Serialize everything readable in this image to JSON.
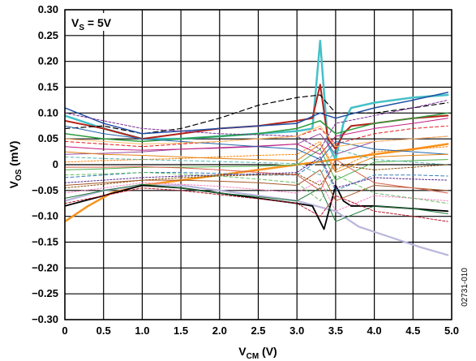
{
  "chart_data": {
    "type": "line",
    "title": "",
    "xlabel": {
      "main": "V",
      "sub": "CM",
      "rest": " (V)"
    },
    "ylabel": {
      "main": "V",
      "sub": "OS",
      "rest": " (mV)"
    },
    "xlim": [
      0,
      5
    ],
    "ylim": [
      -0.3,
      0.3
    ],
    "x_ticks": [
      0,
      0.5,
      1.0,
      1.5,
      2.0,
      2.5,
      3.0,
      3.5,
      4.0,
      4.5,
      5.0
    ],
    "x_tick_labels": [
      "0",
      "0.5",
      "1.0",
      "1.5",
      "2.0",
      "2.5",
      "3.0",
      "3.5",
      "4.0",
      "4.5",
      "5.0"
    ],
    "y_ticks": [
      0.3,
      0.25,
      0.2,
      0.15,
      0.1,
      0.05,
      0,
      -0.05,
      -0.1,
      -0.15,
      -0.2,
      -0.25,
      -0.3
    ],
    "y_tick_labels": [
      "0.30",
      "0.25",
      "0.20",
      "0.15",
      "0.10",
      "0.05",
      "0",
      "−0.05",
      "−0.10",
      "−0.15",
      "−0.20",
      "−0.25",
      "−0.30"
    ],
    "grid": true,
    "annotation": {
      "main": "V",
      "sub": "S",
      "rest": " = 5V"
    },
    "side_id": "02731-010",
    "series": [
      {
        "x": [
          0,
          0.5,
          1.0,
          1.5,
          2.0,
          2.5,
          3.0,
          3.2,
          3.3,
          3.4,
          3.5,
          3.6,
          3.7,
          4.0,
          4.5,
          4.95
        ],
        "y": [
          0.095,
          0.07,
          0.05,
          0.05,
          0.055,
          0.06,
          0.065,
          0.07,
          0.24,
          0.04,
          0.01,
          0.08,
          0.11,
          0.12,
          0.13,
          0.135
        ],
        "color": "#45c0c8",
        "width": 2.5,
        "dash": ""
      },
      {
        "x": [
          0,
          0.5,
          1.0,
          1.5,
          2.0,
          2.5,
          3.0,
          3.2,
          3.3,
          3.4,
          3.5,
          3.6,
          3.7,
          4.0,
          4.5,
          4.95
        ],
        "y": [
          0.085,
          0.07,
          0.05,
          0.06,
          0.07,
          0.075,
          0.085,
          0.09,
          0.155,
          0.05,
          0.03,
          0.06,
          0.075,
          0.08,
          0.09,
          0.095
        ],
        "color": "#b32218",
        "width": 2.0,
        "dash": ""
      },
      {
        "x": [
          0,
          0.5,
          1.0,
          1.5,
          2.0,
          2.5,
          3.0,
          3.3,
          3.5,
          4.0,
          4.5,
          4.95
        ],
        "y": [
          0.07,
          0.075,
          0.06,
          0.07,
          0.09,
          0.115,
          0.13,
          0.135,
          0.1,
          0.1,
          0.11,
          0.12
        ],
        "color": "#000000",
        "width": 1.2,
        "dash": "6,4"
      },
      {
        "x": [
          0,
          0.5,
          1.0,
          1.5,
          2.0,
          2.5,
          3.0,
          3.2,
          3.35,
          3.5,
          3.6,
          3.7,
          4.0,
          4.5,
          4.95
        ],
        "y": [
          0.03,
          0.025,
          0.02,
          0.015,
          0.01,
          0.005,
          0.0,
          -0.005,
          0.04,
          -0.02,
          0.015,
          0.02,
          0.02,
          0.025,
          0.03
        ],
        "color": "#ffffff",
        "width": 2.5,
        "dash": ""
      },
      {
        "x": [
          0,
          0.3,
          0.6,
          1.0,
          1.5,
          2.0,
          2.5,
          3.0,
          3.5,
          4.0,
          4.5,
          4.95
        ],
        "y": [
          -0.11,
          -0.08,
          -0.055,
          -0.04,
          -0.03,
          -0.02,
          -0.01,
          0.0,
          0.01,
          0.02,
          0.03,
          0.04
        ],
        "color": "#f7941d",
        "width": 2.5,
        "dash": ""
      },
      {
        "x": [
          0,
          0.5,
          1.0,
          1.5,
          2.0,
          2.5,
          3.0,
          3.5,
          3.8,
          4.2,
          4.6,
          4.95
        ],
        "y": [
          -0.07,
          -0.05,
          -0.04,
          -0.04,
          -0.05,
          -0.06,
          -0.07,
          -0.09,
          -0.12,
          -0.14,
          -0.16,
          -0.175
        ],
        "color": "#b9b6dc",
        "width": 2.2,
        "dash": ""
      },
      {
        "x": [
          0,
          0.5,
          1.0,
          1.5,
          2.0,
          2.5,
          3.0,
          3.2,
          3.35,
          3.5,
          3.6,
          3.7,
          4.0,
          4.5,
          4.95
        ],
        "y": [
          -0.08,
          -0.06,
          -0.04,
          -0.045,
          -0.055,
          -0.065,
          -0.075,
          -0.08,
          -0.125,
          -0.04,
          -0.07,
          -0.08,
          -0.08,
          -0.085,
          -0.09
        ],
        "color": "#000000",
        "width": 1.8,
        "dash": ""
      },
      {
        "x": [
          0,
          0.5,
          1.0,
          1.5,
          2.0,
          2.5,
          3.0,
          3.3,
          3.5,
          4.0,
          4.5,
          4.95
        ],
        "y": [
          0.11,
          0.08,
          0.06,
          0.065,
          0.07,
          0.075,
          0.08,
          0.1,
          0.09,
          0.11,
          0.125,
          0.14
        ],
        "color": "#1f4fa3",
        "width": 1.5,
        "dash": ""
      },
      {
        "x": [
          0,
          0.5,
          1.0,
          1.5,
          2.0,
          2.5,
          3.0,
          3.3,
          3.5,
          4.0,
          4.5,
          4.95
        ],
        "y": [
          0.06,
          0.05,
          0.045,
          0.05,
          0.055,
          0.06,
          0.07,
          0.085,
          0.06,
          0.08,
          0.09,
          0.1
        ],
        "color": "#2b9b3c",
        "width": 1.5,
        "dash": ""
      },
      {
        "x": [
          0,
          0.5,
          1.0,
          1.5,
          2.0,
          2.5,
          3.0,
          3.3,
          3.5,
          4.0,
          4.5,
          4.95
        ],
        "y": [
          0.045,
          0.04,
          0.035,
          0.04,
          0.045,
          0.05,
          0.055,
          0.07,
          0.04,
          0.06,
          0.07,
          0.075
        ],
        "color": "#e41a1c",
        "width": 1.0,
        "dash": "4,3"
      },
      {
        "x": [
          0,
          0.5,
          1.0,
          1.5,
          2.0,
          2.5,
          3.0,
          3.3,
          3.5,
          4.0,
          4.5,
          4.95
        ],
        "y": [
          0.02,
          0.022,
          0.025,
          0.03,
          0.032,
          0.035,
          0.04,
          0.06,
          0.02,
          0.045,
          0.05,
          0.055
        ],
        "color": "#984ea3",
        "width": 1.0,
        "dash": ""
      },
      {
        "x": [
          0,
          0.5,
          1.0,
          1.5,
          2.0,
          2.5,
          3.0,
          3.3,
          3.5,
          4.0,
          4.5,
          4.95
        ],
        "y": [
          0.005,
          0.008,
          0.01,
          0.012,
          0.015,
          0.018,
          0.02,
          0.045,
          -0.01,
          0.025,
          0.03,
          0.035
        ],
        "color": "#ff7f00",
        "width": 1.0,
        "dash": "2,2"
      },
      {
        "x": [
          0,
          0.5,
          1.0,
          1.5,
          2.0,
          2.5,
          3.0,
          3.3,
          3.5,
          4.0,
          4.5,
          4.95
        ],
        "y": [
          -0.01,
          -0.008,
          -0.005,
          -0.005,
          -0.004,
          -0.003,
          0.0,
          0.03,
          -0.03,
          0.005,
          0.008,
          0.01
        ],
        "color": "#4daf4a",
        "width": 1.0,
        "dash": ""
      },
      {
        "x": [
          0,
          0.5,
          1.0,
          1.5,
          2.0,
          2.5,
          3.0,
          3.3,
          3.5,
          4.0,
          4.5,
          4.95
        ],
        "y": [
          -0.025,
          -0.02,
          -0.015,
          -0.015,
          -0.017,
          -0.02,
          -0.02,
          0.01,
          -0.05,
          -0.02,
          -0.02,
          -0.022
        ],
        "color": "#377eb8",
        "width": 1.0,
        "dash": "4,3"
      },
      {
        "x": [
          0,
          0.5,
          1.0,
          1.5,
          2.0,
          2.5,
          3.0,
          3.3,
          3.5,
          4.0,
          4.5,
          4.95
        ],
        "y": [
          -0.04,
          -0.035,
          -0.03,
          -0.03,
          -0.032,
          -0.035,
          -0.04,
          -0.01,
          -0.07,
          -0.04,
          -0.045,
          -0.05
        ],
        "color": "#a65628",
        "width": 1.0,
        "dash": ""
      },
      {
        "x": [
          0,
          0.5,
          1.0,
          1.5,
          2.0,
          2.5,
          3.0,
          3.3,
          3.5,
          4.0,
          4.5,
          4.95
        ],
        "y": [
          -0.055,
          -0.045,
          -0.035,
          -0.038,
          -0.042,
          -0.048,
          -0.055,
          -0.03,
          -0.09,
          -0.06,
          -0.065,
          -0.07
        ],
        "color": "#f781bf",
        "width": 1.0,
        "dash": "2,2"
      },
      {
        "x": [
          0,
          0.5,
          1.0,
          1.5,
          2.0,
          2.5,
          3.0,
          3.3,
          3.5,
          4.0,
          4.5,
          4.95
        ],
        "y": [
          -0.065,
          -0.05,
          -0.038,
          -0.045,
          -0.055,
          -0.062,
          -0.07,
          -0.045,
          -0.11,
          -0.08,
          -0.085,
          -0.095
        ],
        "color": "#1b7837",
        "width": 1.0,
        "dash": ""
      },
      {
        "x": [
          0,
          0.5,
          1.0,
          1.5,
          2.0,
          2.5,
          3.0,
          3.3,
          3.5,
          4.0,
          4.5,
          4.95
        ],
        "y": [
          0.1,
          0.085,
          0.07,
          0.065,
          0.06,
          0.058,
          0.055,
          0.03,
          0.08,
          0.095,
          0.11,
          0.125
        ],
        "color": "#7b3294",
        "width": 1.0,
        "dash": "3,2"
      },
      {
        "x": [
          0,
          0.5,
          1.0,
          1.5,
          2.0,
          2.5,
          3.0,
          3.3,
          3.5,
          4.0,
          4.5,
          4.95
        ],
        "y": [
          0.035,
          0.03,
          0.028,
          0.03,
          0.033,
          0.036,
          0.04,
          0.02,
          0.055,
          0.07,
          0.08,
          0.09
        ],
        "color": "#c51b7d",
        "width": 1.0,
        "dash": ""
      },
      {
        "x": [
          0,
          0.5,
          1.0,
          1.5,
          2.0,
          2.5,
          3.0,
          3.3,
          3.5,
          4.0,
          4.5,
          4.95
        ],
        "y": [
          0.015,
          0.012,
          0.01,
          0.008,
          0.006,
          0.004,
          0.002,
          -0.02,
          0.03,
          0.01,
          0.005,
          0.0
        ],
        "color": "#5ab4ac",
        "width": 1.0,
        "dash": "4,3"
      },
      {
        "x": [
          0,
          0.5,
          1.0,
          1.5,
          2.0,
          2.5,
          3.0,
          3.3,
          3.5,
          4.0,
          4.5,
          4.95
        ],
        "y": [
          -0.005,
          -0.005,
          -0.004,
          -0.006,
          -0.01,
          -0.015,
          -0.02,
          -0.05,
          0.01,
          -0.035,
          -0.045,
          -0.055
        ],
        "color": "#d6604d",
        "width": 1.0,
        "dash": ""
      },
      {
        "x": [
          0,
          0.5,
          1.0,
          1.5,
          2.0,
          2.5,
          3.0,
          3.3,
          3.5,
          4.0,
          4.5,
          4.95
        ],
        "y": [
          -0.045,
          -0.038,
          -0.03,
          -0.025,
          -0.022,
          -0.02,
          -0.018,
          -0.04,
          0.0,
          -0.01,
          -0.005,
          0.0
        ],
        "color": "#8c510a",
        "width": 1.0,
        "dash": "2,2"
      },
      {
        "x": [
          0,
          0.5,
          1.0,
          1.5,
          2.0,
          2.5,
          3.0,
          3.3,
          3.5,
          4.0,
          4.5,
          4.95
        ],
        "y": [
          0.075,
          0.06,
          0.05,
          0.045,
          0.04,
          0.035,
          0.03,
          0.01,
          0.045,
          0.03,
          0.025,
          0.02
        ],
        "color": "#2166ac",
        "width": 1.0,
        "dash": ""
      },
      {
        "x": [
          0,
          0.5,
          1.0,
          1.5,
          2.0,
          2.5,
          3.0,
          3.3,
          3.5,
          4.0,
          4.5,
          4.95
        ],
        "y": [
          -0.075,
          -0.06,
          -0.045,
          -0.05,
          -0.058,
          -0.066,
          -0.075,
          -0.1,
          -0.06,
          -0.09,
          -0.1,
          -0.11
        ],
        "color": "#b2182b",
        "width": 1.0,
        "dash": "3,2"
      },
      {
        "x": [
          0,
          0.5,
          1.0,
          1.5,
          2.0,
          2.5,
          3.0,
          3.3,
          3.5,
          4.0,
          4.5,
          4.95
        ],
        "y": [
          0.05,
          0.045,
          0.04,
          0.042,
          0.045,
          0.05,
          0.055,
          0.075,
          0.035,
          0.045,
          0.05,
          0.055
        ],
        "color": "#fdb863",
        "width": 1.0,
        "dash": ""
      },
      {
        "x": [
          0,
          0.5,
          1.0,
          1.5,
          2.0,
          2.5,
          3.0,
          3.3,
          3.5,
          4.0,
          4.5,
          4.95
        ],
        "y": [
          -0.02,
          -0.018,
          -0.015,
          -0.018,
          -0.022,
          -0.028,
          -0.035,
          -0.07,
          -0.02,
          -0.055,
          -0.065,
          -0.075
        ],
        "color": "#66bd63",
        "width": 1.0,
        "dash": "4,3"
      },
      {
        "x": [
          0,
          0.5,
          1.0,
          1.5,
          2.0,
          2.5,
          3.0,
          3.3,
          3.5,
          4.0,
          4.5,
          4.95
        ],
        "y": [
          0.025,
          0.02,
          0.018,
          0.015,
          0.012,
          0.01,
          0.008,
          0.04,
          -0.015,
          0.015,
          0.018,
          0.02
        ],
        "color": "#e08214",
        "width": 1.0,
        "dash": ""
      },
      {
        "x": [
          0,
          0.5,
          1.0,
          1.5,
          2.0,
          2.5,
          3.0,
          3.3,
          3.5,
          4.0,
          4.5,
          4.95
        ],
        "y": [
          -0.035,
          -0.03,
          -0.025,
          -0.022,
          -0.02,
          -0.018,
          -0.015,
          0.015,
          -0.045,
          -0.025,
          -0.028,
          -0.03
        ],
        "color": "#542788",
        "width": 1.0,
        "dash": "2,2"
      }
    ]
  }
}
